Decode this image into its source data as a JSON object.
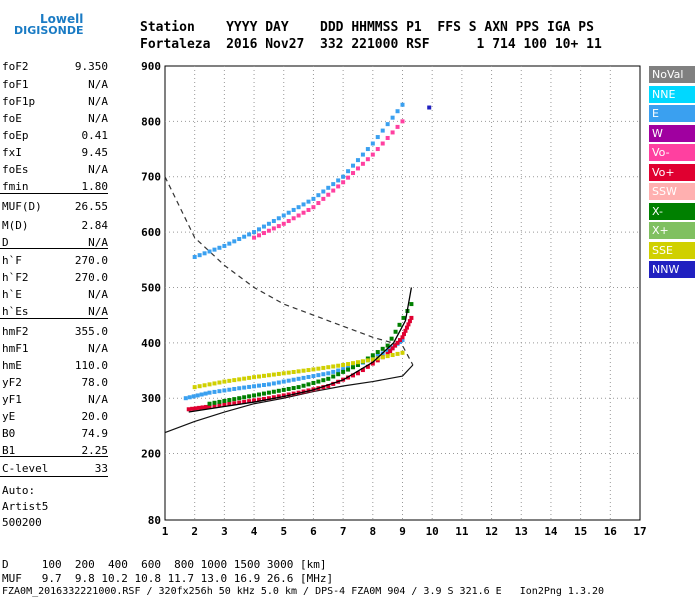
{
  "logo": {
    "line1": "Lowell",
    "line2": "DIGISONDE"
  },
  "header": {
    "row1": "Station    YYYY DAY    DDD HHMMSS P1  FFS S AXN PPS IGA PS",
    "row2": "Fortaleza  2016 Nov27  332 221000 RSF      1 714 100 10+ 11"
  },
  "params": [
    {
      "k": "foF2",
      "v": "9.350"
    },
    {
      "k": "foF1",
      "v": "N/A"
    },
    {
      "k": "foF1p",
      "v": "N/A"
    },
    {
      "k": "foE",
      "v": "N/A"
    },
    {
      "k": "foEp",
      "v": "0.41"
    },
    {
      "k": "fxI",
      "v": "9.45"
    },
    {
      "k": "foEs",
      "v": "N/A"
    },
    {
      "k": "fmin",
      "v": "1.80"
    },
    {
      "k": "MUF(D)",
      "v": "26.55"
    },
    {
      "k": "M(D)",
      "v": "2.84"
    },
    {
      "k": "D",
      "v": "N/A"
    },
    {
      "k": "h`F",
      "v": "270.0"
    },
    {
      "k": "h`F2",
      "v": "270.0"
    },
    {
      "k": "h`E",
      "v": "N/A"
    },
    {
      "k": "h`Es",
      "v": "N/A"
    },
    {
      "k": "hmF2",
      "v": "355.0"
    },
    {
      "k": "hmF1",
      "v": "N/A"
    },
    {
      "k": "hmE",
      "v": "110.0"
    },
    {
      "k": "yF2",
      "v": "78.0"
    },
    {
      "k": "yF1",
      "v": "N/A"
    },
    {
      "k": "yE",
      "v": "20.0"
    },
    {
      "k": "B0",
      "v": "74.9"
    },
    {
      "k": "B1",
      "v": "2.25"
    },
    {
      "k": "C-level",
      "v": "33"
    }
  ],
  "notes": {
    "auto": "Auto:",
    "artist": "Artist5",
    "version": "500200"
  },
  "footer": {
    "d_row": "D     100  200  400  600  800 1000 1500 3000 [km]",
    "muf_row": "MUF   9.7  9.8 10.2 10.8 11.7 13.0 16.9 26.6 [MHz]",
    "file_row": "FZA0M_2016332221000.RSF / 320fx256h 50 kHz 5.0 km / DPS-4 FZA0M 904 / 3.9 S 321.6 E   Ion2Png 1.3.20"
  },
  "legend": [
    {
      "label": "NoVal",
      "color": "#808080"
    },
    {
      "label": "NNE",
      "color": "#00d8ff"
    },
    {
      "label": "E",
      "color": "#3aa0f0"
    },
    {
      "label": "W",
      "color": "#a000a0"
    },
    {
      "label": "Vo-",
      "color": "#ff40a0"
    },
    {
      "label": "Vo+",
      "color": "#e00030"
    },
    {
      "label": "SSW",
      "color": "#ffb0b0"
    },
    {
      "label": "X-",
      "color": "#008000"
    },
    {
      "label": "X+",
      "color": "#80c060"
    },
    {
      "label": "SSE",
      "color": "#d0d000"
    },
    {
      "label": "NNW",
      "color": "#2020c0"
    }
  ],
  "chart_data": {
    "type": "scatter",
    "xlim": [
      1,
      17
    ],
    "ylim": [
      80,
      900
    ],
    "x_ticks": [
      1,
      2,
      3,
      4,
      5,
      6,
      7,
      8,
      9,
      10,
      11,
      12,
      13,
      14,
      15,
      16,
      17
    ],
    "y_ticks": [
      80,
      200,
      300,
      400,
      500,
      600,
      700,
      800,
      900
    ],
    "grid": true,
    "legend_position": "right",
    "series": [
      {
        "name": "E",
        "color": "#3aa0f0",
        "points": [
          [
            1.7,
            300
          ],
          [
            2.5,
            310
          ],
          [
            3.5,
            318
          ],
          [
            4.5,
            325
          ],
          [
            5.5,
            335
          ],
          [
            6.5,
            345
          ],
          [
            7.5,
            360
          ],
          [
            8.5,
            385
          ],
          [
            9.0,
            405
          ]
        ]
      },
      {
        "name": "E",
        "color": "#3aa0f0",
        "points": [
          [
            2.0,
            555
          ],
          [
            3.0,
            575
          ],
          [
            4.0,
            600
          ],
          [
            5.0,
            630
          ],
          [
            6.0,
            660
          ],
          [
            7.0,
            700
          ],
          [
            8.0,
            760
          ],
          [
            9.0,
            830
          ]
        ]
      },
      {
        "name": "Vo+",
        "color": "#e00030",
        "points": [
          [
            1.8,
            280
          ],
          [
            2.5,
            285
          ],
          [
            3.5,
            292
          ],
          [
            4.5,
            300
          ],
          [
            5.5,
            310
          ],
          [
            6.5,
            322
          ],
          [
            7.5,
            345
          ],
          [
            8.5,
            380
          ],
          [
            9.0,
            410
          ],
          [
            9.3,
            445
          ]
        ]
      },
      {
        "name": "X-",
        "color": "#008000",
        "points": [
          [
            2.5,
            290
          ],
          [
            3.5,
            300
          ],
          [
            4.5,
            310
          ],
          [
            5.5,
            320
          ],
          [
            6.5,
            335
          ],
          [
            7.5,
            360
          ],
          [
            8.5,
            395
          ],
          [
            9.3,
            470
          ]
        ]
      },
      {
        "name": "SSE",
        "color": "#d0d000",
        "points": [
          [
            2.0,
            320
          ],
          [
            3.0,
            330
          ],
          [
            4.0,
            338
          ],
          [
            5.0,
            345
          ],
          [
            6.0,
            352
          ],
          [
            7.0,
            360
          ],
          [
            8.0,
            370
          ],
          [
            9.0,
            382
          ]
        ]
      },
      {
        "name": "Vo-",
        "color": "#ff40a0",
        "points": [
          [
            4.0,
            590
          ],
          [
            5.0,
            615
          ],
          [
            6.0,
            645
          ],
          [
            7.0,
            690
          ],
          [
            8.0,
            740
          ],
          [
            9.0,
            800
          ]
        ]
      },
      {
        "name": "NNW",
        "color": "#2020c0",
        "points": [
          [
            9.9,
            825
          ]
        ]
      }
    ],
    "profile_curve": [
      [
        1.0,
        700
      ],
      [
        2.0,
        590
      ],
      [
        3.0,
        540
      ],
      [
        4.0,
        500
      ],
      [
        5.0,
        470
      ],
      [
        6.0,
        450
      ],
      [
        7.0,
        430
      ],
      [
        8.0,
        410
      ],
      [
        9.0,
        395
      ],
      [
        9.35,
        360
      ],
      [
        9.0,
        340
      ],
      [
        8.0,
        330
      ],
      [
        7.0,
        322
      ],
      [
        6.0,
        312
      ],
      [
        5.0,
        300
      ],
      [
        4.0,
        290
      ],
      [
        3.0,
        275
      ],
      [
        2.0,
        258
      ],
      [
        1.0,
        238
      ]
    ],
    "trace_curve": [
      [
        1.8,
        275
      ],
      [
        3,
        285
      ],
      [
        4,
        293
      ],
      [
        5,
        303
      ],
      [
        6,
        315
      ],
      [
        7,
        333
      ],
      [
        8,
        365
      ],
      [
        8.7,
        400
      ],
      [
        9.1,
        440
      ],
      [
        9.3,
        500
      ]
    ]
  }
}
